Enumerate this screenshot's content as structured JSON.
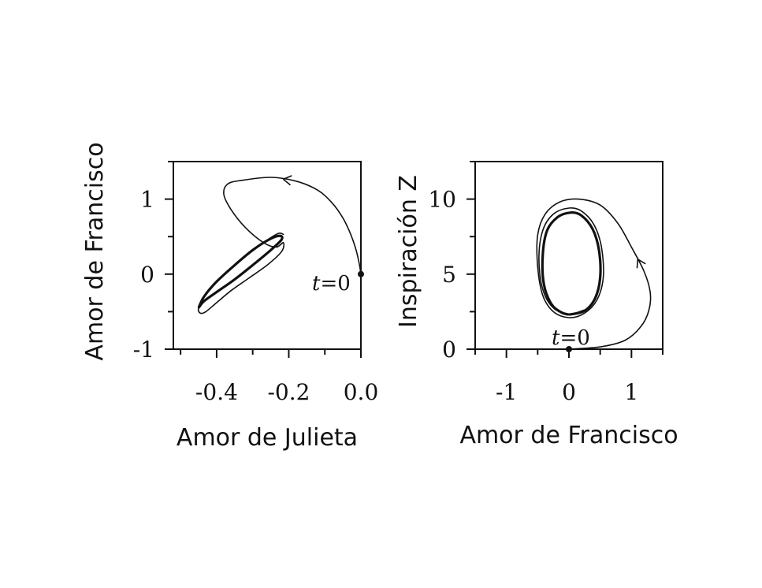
{
  "chart_data": [
    {
      "type": "line",
      "xlabel": "Amor de Julieta",
      "ylabel": "Amor de Francisco",
      "xlim": [
        -0.52,
        0.0
      ],
      "ylim": [
        -1.0,
        1.5
      ],
      "xticks": [
        -0.4,
        -0.2,
        0.0
      ],
      "xtick_labels": [
        "-0.4",
        "-0.2",
        "0.0"
      ],
      "yticks": [
        -1,
        0,
        1
      ],
      "ytick_labels": [
        "-1",
        "0",
        "1"
      ],
      "grid": false,
      "annotation": {
        "var": "t",
        "rest": "=0",
        "x": 0.0,
        "y": 0.0
      },
      "trajectory": [
        [
          0.0,
          0.0
        ],
        [
          -0.005,
          0.15
        ],
        [
          -0.015,
          0.35
        ],
        [
          -0.03,
          0.55
        ],
        [
          -0.05,
          0.75
        ],
        [
          -0.08,
          0.95
        ],
        [
          -0.12,
          1.12
        ],
        [
          -0.18,
          1.24
        ],
        [
          -0.25,
          1.29
        ],
        [
          -0.33,
          1.25
        ],
        [
          -0.37,
          1.2
        ],
        [
          -0.38,
          1.06
        ],
        [
          -0.36,
          0.86
        ],
        [
          -0.32,
          0.62
        ],
        [
          -0.27,
          0.42
        ],
        [
          -0.235,
          0.36
        ],
        [
          -0.215,
          0.42
        ],
        [
          -0.22,
          0.3
        ],
        [
          -0.26,
          0.12
        ],
        [
          -0.31,
          -0.05
        ],
        [
          -0.36,
          -0.22
        ],
        [
          -0.4,
          -0.38
        ],
        [
          -0.43,
          -0.5
        ],
        [
          -0.445,
          -0.52
        ],
        [
          -0.45,
          -0.45
        ],
        [
          -0.43,
          -0.26
        ],
        [
          -0.39,
          -0.05
        ],
        [
          -0.33,
          0.2
        ],
        [
          -0.27,
          0.42
        ],
        [
          -0.23,
          0.54
        ],
        [
          -0.215,
          0.53
        ]
      ],
      "limit_cycle": [
        [
          -0.45,
          -0.45
        ],
        [
          -0.435,
          -0.3
        ],
        [
          -0.4,
          -0.1
        ],
        [
          -0.35,
          0.12
        ],
        [
          -0.3,
          0.32
        ],
        [
          -0.255,
          0.46
        ],
        [
          -0.225,
          0.51
        ],
        [
          -0.22,
          0.46
        ],
        [
          -0.25,
          0.32
        ],
        [
          -0.3,
          0.12
        ],
        [
          -0.35,
          -0.07
        ],
        [
          -0.4,
          -0.24
        ],
        [
          -0.435,
          -0.36
        ],
        [
          -0.45,
          -0.45
        ]
      ]
    },
    {
      "type": "line",
      "xlabel": "Amor de Francisco",
      "ylabel": "Inspiración Z",
      "xlim": [
        -1.5,
        1.5
      ],
      "ylim": [
        0,
        12.5
      ],
      "xticks": [
        -1,
        0,
        1
      ],
      "xtick_labels": [
        "-1",
        "0",
        "1"
      ],
      "yticks": [
        0,
        5,
        10
      ],
      "ytick_labels": [
        "0",
        "5",
        "10"
      ],
      "grid": false,
      "annotation": {
        "var": "t",
        "rest": "=0",
        "x": 0.0,
        "y": 0.0
      },
      "trajectory": [
        [
          0.0,
          0.0
        ],
        [
          0.5,
          0.15
        ],
        [
          0.9,
          0.6
        ],
        [
          1.15,
          1.5
        ],
        [
          1.28,
          2.6
        ],
        [
          1.3,
          3.8
        ],
        [
          1.2,
          5.2
        ],
        [
          1.0,
          6.8
        ],
        [
          0.78,
          8.4
        ],
        [
          0.5,
          9.6
        ],
        [
          0.15,
          10.0
        ],
        [
          -0.15,
          9.8
        ],
        [
          -0.38,
          9.0
        ],
        [
          -0.5,
          7.6
        ],
        [
          -0.5,
          5.5
        ],
        [
          -0.42,
          3.6
        ],
        [
          -0.25,
          2.5
        ],
        [
          0.0,
          2.1
        ],
        [
          0.25,
          2.4
        ],
        [
          0.45,
          3.3
        ],
        [
          0.55,
          4.8
        ],
        [
          0.52,
          6.8
        ],
        [
          0.4,
          8.3
        ],
        [
          0.2,
          9.2
        ],
        [
          0.0,
          9.4
        ],
        [
          -0.25,
          9.0
        ],
        [
          -0.42,
          7.9
        ],
        [
          -0.48,
          6.0
        ],
        [
          -0.42,
          4.0
        ],
        [
          -0.25,
          2.75
        ],
        [
          0.0,
          2.35
        ],
        [
          0.24,
          2.6
        ]
      ],
      "limit_cycle": [
        [
          0.0,
          2.3
        ],
        [
          0.25,
          2.55
        ],
        [
          0.42,
          3.4
        ],
        [
          0.5,
          4.8
        ],
        [
          0.48,
          6.6
        ],
        [
          0.38,
          8.0
        ],
        [
          0.2,
          8.9
        ],
        [
          0.03,
          9.1
        ],
        [
          -0.18,
          8.8
        ],
        [
          -0.35,
          7.9
        ],
        [
          -0.42,
          6.2
        ],
        [
          -0.4,
          4.3
        ],
        [
          -0.28,
          3.0
        ],
        [
          -0.12,
          2.45
        ],
        [
          0.0,
          2.3
        ]
      ]
    }
  ]
}
